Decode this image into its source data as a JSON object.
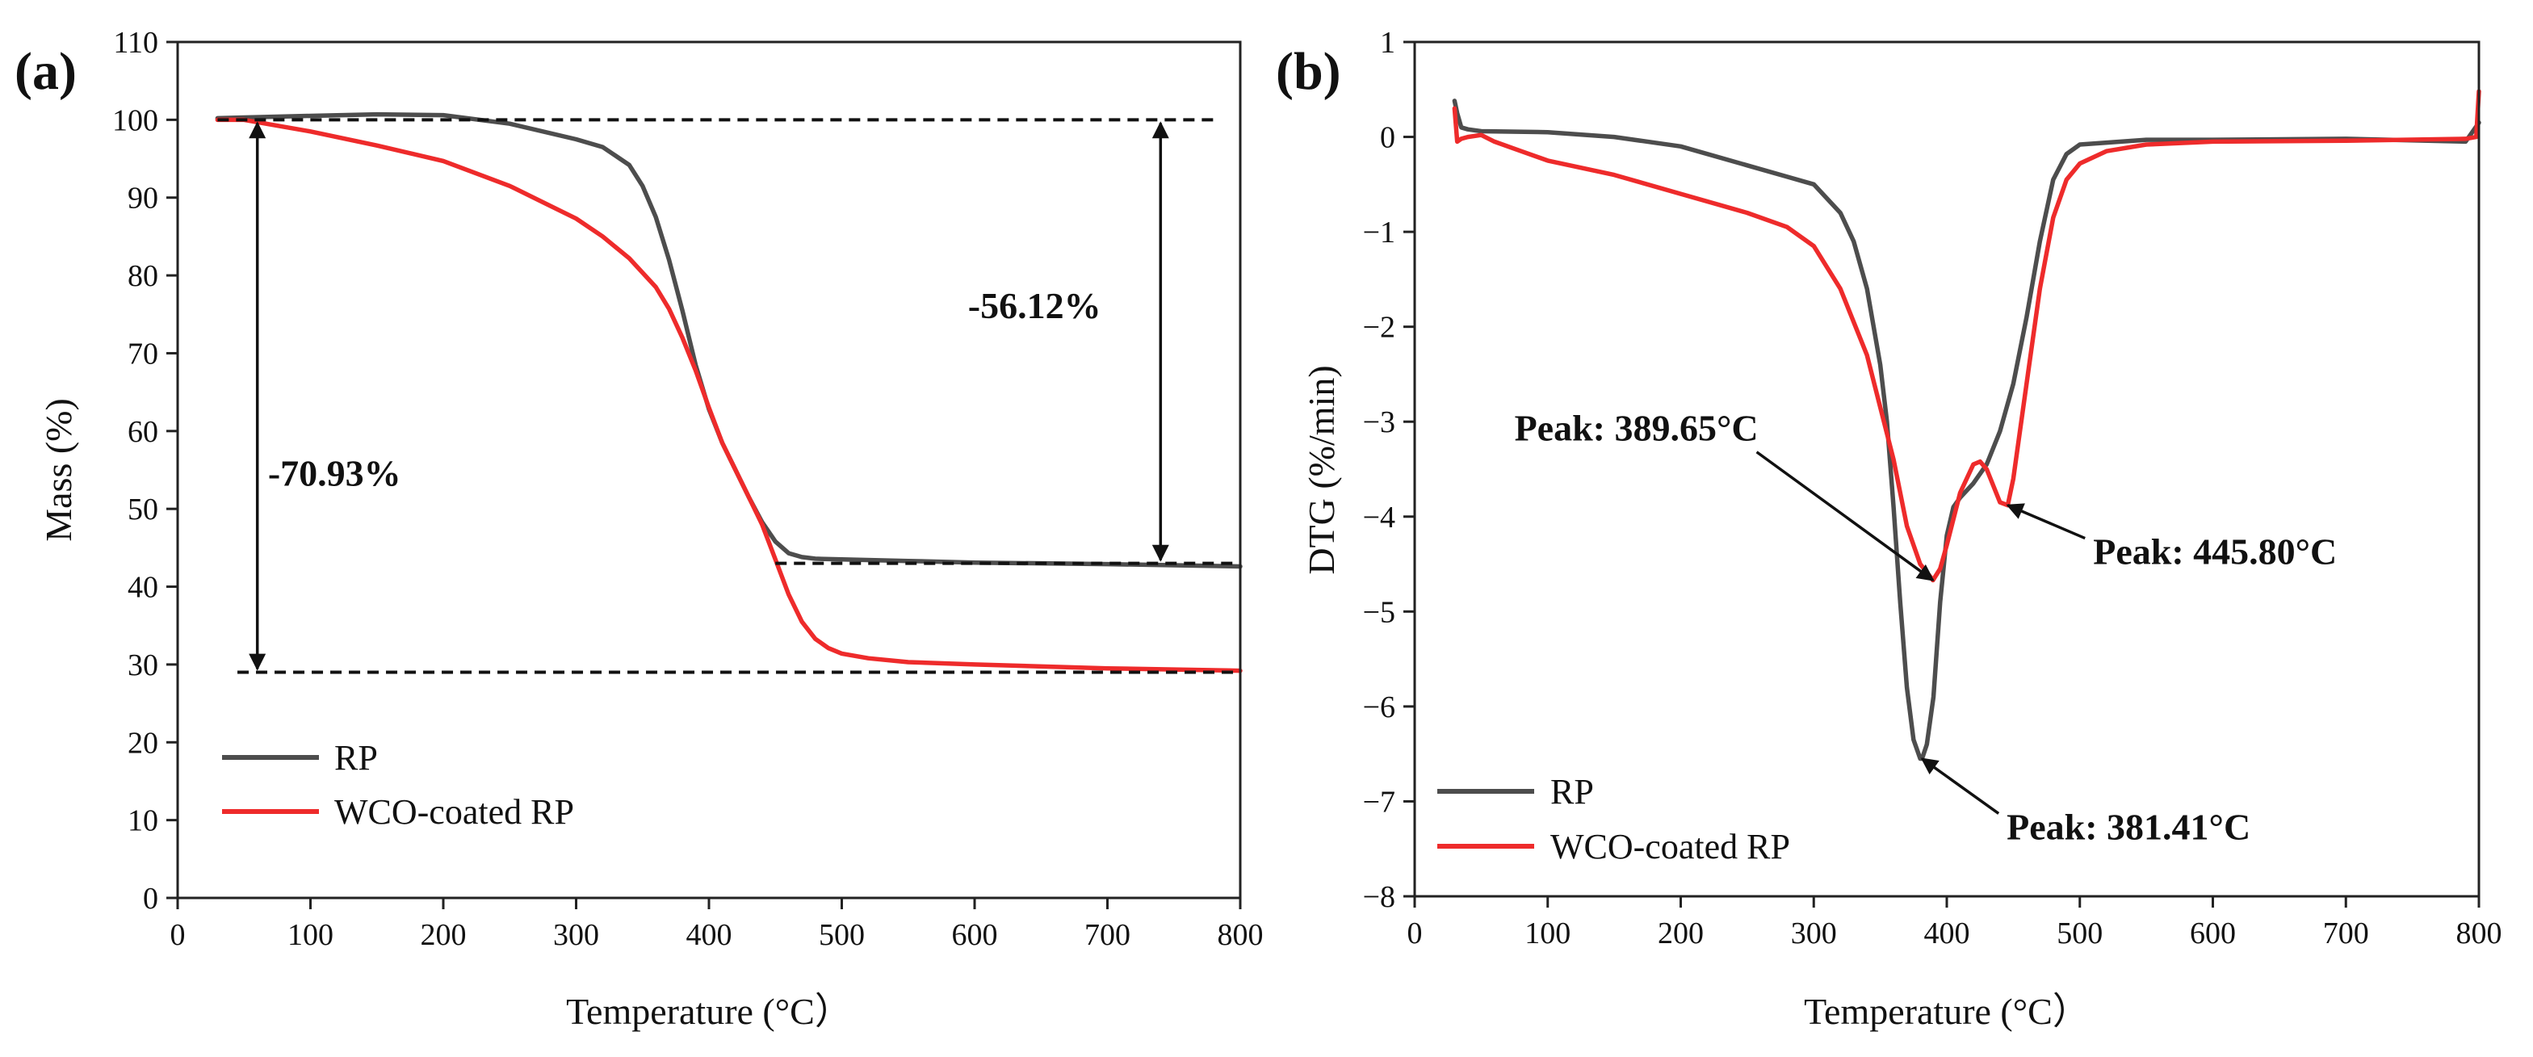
{
  "colors": {
    "rp": "#4d4d4d",
    "wco": "#ee2b2b",
    "axis": "#222222"
  },
  "chart_data": [
    {
      "type": "line",
      "panel_label": "(a)",
      "xlabel": "Temperature (°C）",
      "ylabel": "Mass (%)",
      "xlim": [
        0,
        800
      ],
      "ylim": [
        0,
        110
      ],
      "xticks": [
        "0",
        "100",
        "200",
        "300",
        "400",
        "500",
        "600",
        "700",
        "800"
      ],
      "yticks": [
        "0",
        "10",
        "20",
        "30",
        "40",
        "50",
        "60",
        "70",
        "80",
        "90",
        "100",
        "110"
      ],
      "grid": false,
      "legend_position": "bottom-left",
      "series": [
        {
          "name": "RP",
          "x": [
            30,
            50,
            100,
            150,
            200,
            250,
            300,
            320,
            340,
            350,
            360,
            370,
            380,
            390,
            400,
            410,
            420,
            430,
            440,
            450,
            460,
            470,
            480,
            500,
            550,
            600,
            700,
            800
          ],
          "y": [
            100.2,
            100.3,
            100.5,
            100.7,
            100.6,
            99.5,
            97.5,
            96.5,
            94.2,
            91.5,
            87.5,
            82,
            75.5,
            68.5,
            62.8,
            58.5,
            55,
            51.5,
            48.3,
            45.8,
            44.3,
            43.8,
            43.6,
            43.5,
            43.3,
            43.1,
            42.9,
            42.6
          ]
        },
        {
          "name": "WCO-coated RP",
          "x": [
            30,
            50,
            100,
            150,
            200,
            250,
            300,
            320,
            340,
            360,
            370,
            380,
            390,
            400,
            410,
            420,
            430,
            440,
            450,
            460,
            470,
            480,
            490,
            500,
            520,
            550,
            600,
            700,
            800
          ],
          "y": [
            100,
            100,
            98.5,
            96.7,
            94.7,
            91.5,
            87.3,
            85,
            82.2,
            78.5,
            75.7,
            72,
            67.8,
            63,
            58.5,
            55,
            51.5,
            48,
            43.5,
            39,
            35.5,
            33.3,
            32.1,
            31.4,
            30.8,
            30.3,
            30,
            29.5,
            29.2
          ]
        }
      ],
      "reference_lines": [
        {
          "y": 100,
          "x_from": 30,
          "x_to": 780
        },
        {
          "y": 43,
          "x_from": 450,
          "x_to": 800
        },
        {
          "y": 29,
          "x_from": 45,
          "x_to": 800
        }
      ],
      "arrows": [
        {
          "x": 60,
          "y_from": 100,
          "y_to": 29
        },
        {
          "x": 740,
          "y_from": 100,
          "y_to": 43
        }
      ],
      "annotations": [
        {
          "text": "-70.93%",
          "x": 68,
          "y": 53
        },
        {
          "text": "-56.12%",
          "x": 595,
          "y": 74.5
        }
      ]
    },
    {
      "type": "line",
      "panel_label": "(b)",
      "xlabel": "Temperature (°C）",
      "ylabel": "DTG (%/min)",
      "xlim": [
        0,
        800
      ],
      "ylim": [
        -8,
        1
      ],
      "xticks": [
        "0",
        "100",
        "200",
        "300",
        "400",
        "500",
        "600",
        "700",
        "800"
      ],
      "yticks": [
        "1",
        "0",
        "−1",
        "−2",
        "−3",
        "−4",
        "−5",
        "−6",
        "−7",
        "−8"
      ],
      "grid": false,
      "legend_position": "bottom-left",
      "series": [
        {
          "name": "RP",
          "x": [
            30,
            32,
            35,
            40,
            50,
            100,
            150,
            200,
            250,
            280,
            300,
            320,
            330,
            340,
            350,
            355,
            360,
            365,
            370,
            375,
            380,
            381.4,
            385,
            390,
            395,
            400,
            405,
            410,
            420,
            430,
            440,
            450,
            460,
            470,
            480,
            490,
            500,
            550,
            600,
            700,
            790,
            800
          ],
          "y": [
            0.38,
            0.25,
            0.1,
            0.08,
            0.06,
            0.05,
            0.0,
            -0.1,
            -0.3,
            -0.42,
            -0.5,
            -0.8,
            -1.1,
            -1.6,
            -2.4,
            -3.0,
            -3.9,
            -4.9,
            -5.8,
            -6.35,
            -6.55,
            -6.55,
            -6.4,
            -5.9,
            -4.9,
            -4.2,
            -3.9,
            -3.8,
            -3.65,
            -3.45,
            -3.1,
            -2.6,
            -1.9,
            -1.1,
            -0.45,
            -0.18,
            -0.08,
            -0.03,
            -0.03,
            -0.02,
            -0.05,
            0.15
          ]
        },
        {
          "name": "WCO-coated RP",
          "x": [
            30,
            32,
            35,
            40,
            50,
            60,
            80,
            100,
            150,
            200,
            250,
            280,
            300,
            320,
            340,
            360,
            370,
            380,
            389.65,
            395,
            400,
            410,
            420,
            425,
            430,
            440,
            445.8,
            450,
            460,
            470,
            480,
            490,
            500,
            520,
            550,
            600,
            700,
            790,
            798,
            800
          ],
          "y": [
            0.3,
            -0.05,
            -0.02,
            0.0,
            0.02,
            -0.05,
            -0.15,
            -0.25,
            -0.4,
            -0.6,
            -0.8,
            -0.95,
            -1.15,
            -1.6,
            -2.3,
            -3.4,
            -4.1,
            -4.5,
            -4.67,
            -4.55,
            -4.3,
            -3.75,
            -3.45,
            -3.42,
            -3.5,
            -3.85,
            -3.88,
            -3.6,
            -2.6,
            -1.6,
            -0.85,
            -0.45,
            -0.28,
            -0.15,
            -0.08,
            -0.05,
            -0.04,
            -0.02,
            0.0,
            0.48
          ]
        }
      ],
      "annotations": [
        {
          "text": "Peak: 389.65°C",
          "x": 75,
          "y": -3.2,
          "arrow_to": [
            389.65,
            -4.67
          ]
        },
        {
          "text": "Peak: 445.80°C",
          "x": 510,
          "y": -4.5,
          "arrow_to": [
            445.8,
            -3.88
          ]
        },
        {
          "text": "Peak: 381.41°C",
          "x": 445,
          "y": -7.4,
          "arrow_to": [
            381.41,
            -6.55
          ]
        }
      ]
    }
  ]
}
